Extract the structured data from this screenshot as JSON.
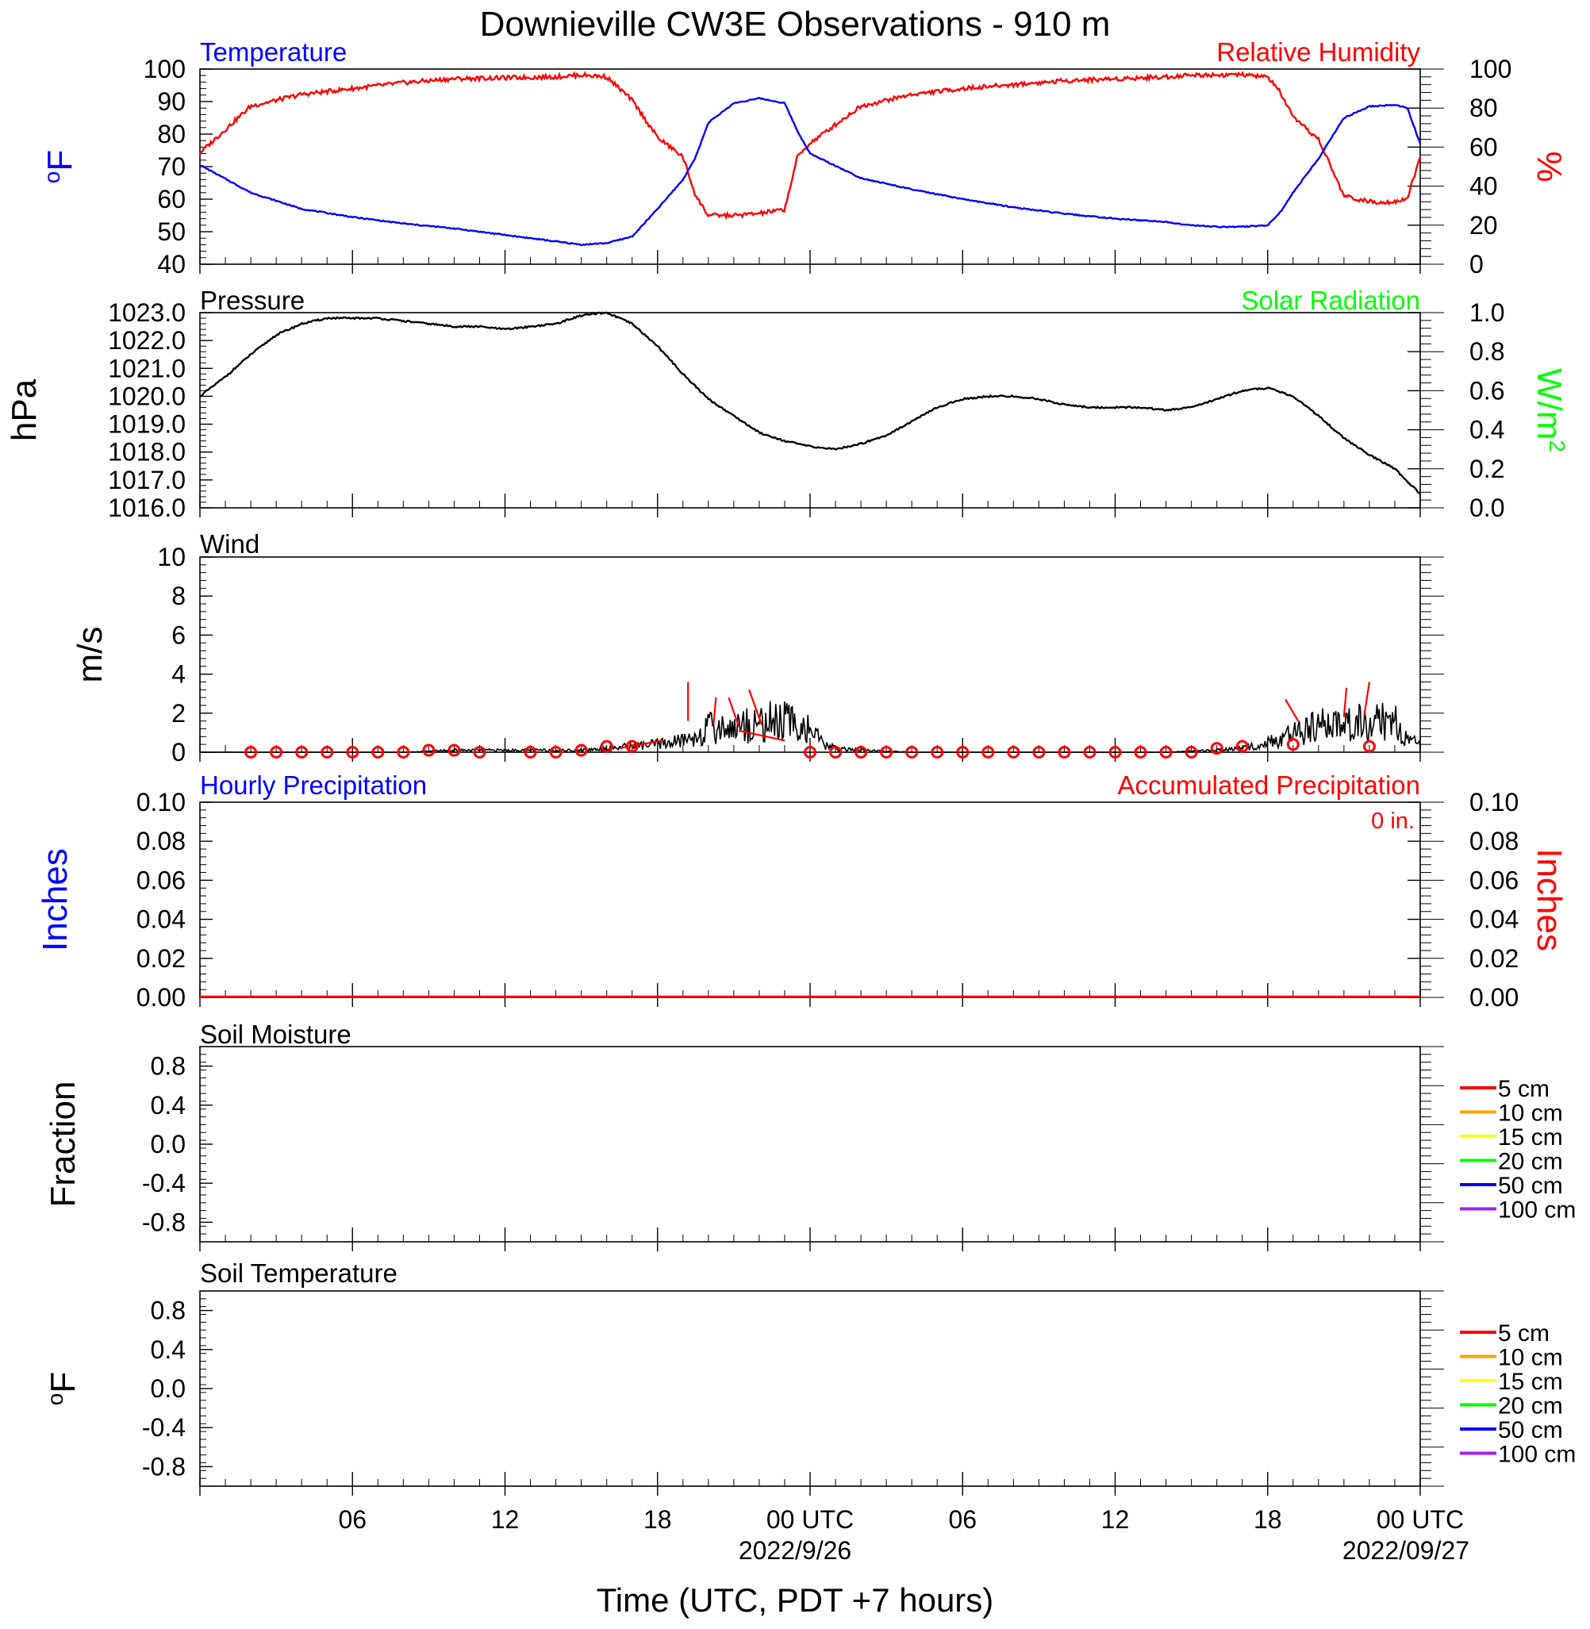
{
  "title": "Downieville CW3E Observations - 910 m",
  "xlabel": "Time (UTC, PDT +7 hours)",
  "x_ticks": [
    "06",
    "12",
    "18",
    "00 UTC",
    "06",
    "12",
    "18",
    "00 UTC"
  ],
  "x_dates": [
    "2022/9/26",
    "2022/09/27"
  ],
  "colors": {
    "temperature": "#0000ff",
    "humidity": "#ff0000",
    "pressure": "#000000",
    "solar": "#00ff00",
    "wind": "#000000",
    "wind_barb": "#ff0000",
    "hourly_precip": "#0000ff",
    "accum_precip": "#ff0000"
  },
  "soil_depths": [
    {
      "label": "5 cm",
      "color": "#ff0000"
    },
    {
      "label": "10 cm",
      "color": "#ffa500"
    },
    {
      "label": "15 cm",
      "color": "#ffff00"
    },
    {
      "label": "20 cm",
      "color": "#00ff00"
    },
    {
      "label": "50 cm",
      "color": "#0000ff"
    },
    {
      "label": "100 cm",
      "color": "#a020f0"
    }
  ],
  "chart_data": [
    {
      "type": "line",
      "name": "temperature-humidity",
      "left_title": "Temperature",
      "right_title": "Relative Humidity",
      "ylabel_left": "oF",
      "ylabel_right": "%",
      "ylim_left": [
        40,
        100
      ],
      "ylim_right": [
        0,
        100
      ],
      "yticks_left": [
        "100",
        "90",
        "80",
        "70",
        "60",
        "50",
        "40"
      ],
      "yticks_right": [
        "100",
        "80",
        "60",
        "40",
        "20",
        "0"
      ],
      "x_hours": [
        0,
        2,
        4,
        6,
        8,
        10,
        12,
        14,
        15,
        16,
        17,
        18,
        19,
        19.5,
        20,
        21,
        22,
        23,
        23.5,
        24,
        26,
        28,
        30,
        32,
        34,
        36,
        38,
        39,
        40,
        41,
        42,
        42.5,
        43,
        44,
        45,
        46,
        47,
        47.5,
        48
      ],
      "series": [
        {
          "name": "Temperature",
          "axis": "left",
          "values": [
            70.5,
            62,
            57,
            54.5,
            52.5,
            51,
            49,
            47,
            46,
            46.5,
            48.5,
            57,
            66,
            73,
            83.5,
            89.5,
            91,
            89.5,
            81,
            74,
            66.5,
            63,
            60,
            57.5,
            55.5,
            54,
            53,
            52,
            51.5,
            51.5,
            52,
            56,
            62,
            72.5,
            85,
            88.5,
            89,
            88,
            77
          ]
        },
        {
          "name": "Relative Humidity",
          "axis": "right",
          "values": [
            57,
            81,
            87,
            90,
            93,
            95,
            95.5,
            96,
            97,
            96,
            84,
            65,
            55,
            35,
            25,
            25,
            26,
            28,
            55,
            62,
            81,
            87,
            90,
            92,
            94,
            95,
            96,
            97,
            97,
            97,
            96,
            88,
            75,
            64,
            35,
            32,
            32,
            34,
            55
          ]
        }
      ]
    },
    {
      "type": "line",
      "name": "pressure-solar",
      "left_title": "Pressure",
      "right_title": "Solar Radiation",
      "ylabel_left": "hPa",
      "ylabel_right": "W/m2",
      "ylim_left": [
        1016.0,
        1023.0
      ],
      "ylim_right": [
        0.0,
        1.0
      ],
      "yticks_left": [
        "1023.0",
        "1022.0",
        "1021.0",
        "1020.0",
        "1019.0",
        "1018.0",
        "1017.0",
        "1016.0"
      ],
      "yticks_right": [
        "1.0",
        "0.8",
        "0.6",
        "0.4",
        "0.2",
        "0.0"
      ],
      "x_hours": [
        0,
        1,
        2,
        3,
        4,
        5,
        6,
        7,
        8,
        9,
        10,
        11,
        12,
        13,
        14,
        15,
        16,
        17,
        18,
        19,
        20,
        21,
        22,
        23,
        24,
        25,
        26,
        27,
        28,
        29,
        30,
        31,
        32,
        33,
        34,
        35,
        36,
        37,
        38,
        39,
        40,
        41,
        42,
        43,
        44,
        45,
        46,
        47,
        48
      ],
      "series": [
        {
          "name": "Pressure",
          "axis": "left",
          "values": [
            1020.0,
            1020.7,
            1021.5,
            1022.2,
            1022.6,
            1022.8,
            1022.8,
            1022.8,
            1022.7,
            1022.6,
            1022.5,
            1022.5,
            1022.4,
            1022.5,
            1022.6,
            1022.9,
            1023.0,
            1022.6,
            1021.8,
            1020.8,
            1019.9,
            1019.3,
            1018.7,
            1018.4,
            1018.2,
            1018.1,
            1018.3,
            1018.6,
            1019.1,
            1019.6,
            1019.9,
            1020.0,
            1020.0,
            1019.9,
            1019.7,
            1019.6,
            1019.6,
            1019.6,
            1019.5,
            1019.6,
            1019.9,
            1020.2,
            1020.3,
            1020.0,
            1019.3,
            1018.5,
            1017.9,
            1017.4,
            1016.5
          ]
        },
        {
          "name": "Solar Radiation",
          "axis": "right",
          "values": []
        }
      ]
    },
    {
      "type": "line",
      "name": "wind",
      "left_title": "Wind",
      "ylabel_left": "m/s",
      "ylim": [
        0,
        10
      ],
      "yticks": [
        "10",
        "8",
        "6",
        "4",
        "2",
        "0"
      ],
      "x_hours": [
        0,
        2,
        4,
        6,
        8,
        10,
        12,
        14,
        15,
        16,
        17,
        18,
        19,
        19.5,
        20,
        21,
        22,
        23,
        24,
        24.5,
        25,
        26,
        28,
        30,
        32,
        34,
        36,
        38,
        40,
        41,
        42,
        43,
        44,
        45,
        46,
        47,
        48
      ],
      "series": [
        {
          "name": "Wind",
          "values": [
            0,
            0,
            0,
            0,
            0,
            0.1,
            0.1,
            0.1,
            0.1,
            0.2,
            0.3,
            0.4,
            0.6,
            0.8,
            1.2,
            1.3,
            1.5,
            1.6,
            1.2,
            0.4,
            0.2,
            0.1,
            0,
            0,
            0,
            0,
            0,
            0,
            0.1,
            0.2,
            0.5,
            0.9,
            1.3,
            1.5,
            1.6,
            1.5,
            0.3
          ]
        }
      ],
      "barbs": [
        {
          "h": 2,
          "v": 0
        },
        {
          "h": 3,
          "v": 0
        },
        {
          "h": 4,
          "v": 0
        },
        {
          "h": 5,
          "v": 0
        },
        {
          "h": 6,
          "v": 0
        },
        {
          "h": 7,
          "v": 0
        },
        {
          "h": 8,
          "v": 0
        },
        {
          "h": 9,
          "v": 0.1
        },
        {
          "h": 10,
          "v": 0.1
        },
        {
          "h": 11,
          "v": 0
        },
        {
          "h": 13,
          "v": 0
        },
        {
          "h": 14,
          "v": 0
        },
        {
          "h": 15,
          "v": 0.1
        },
        {
          "h": 16,
          "v": 0.3
        },
        {
          "h": 17,
          "v": 0.3
        },
        {
          "h": 24,
          "v": 0
        },
        {
          "h": 25,
          "v": 0
        },
        {
          "h": 26,
          "v": 0
        },
        {
          "h": 27,
          "v": 0
        },
        {
          "h": 28,
          "v": 0
        },
        {
          "h": 29,
          "v": 0
        },
        {
          "h": 30,
          "v": 0
        },
        {
          "h": 31,
          "v": 0
        },
        {
          "h": 32,
          "v": 0
        },
        {
          "h": 33,
          "v": 0
        },
        {
          "h": 34,
          "v": 0
        },
        {
          "h": 35,
          "v": 0
        },
        {
          "h": 36,
          "v": 0
        },
        {
          "h": 37,
          "v": 0
        },
        {
          "h": 38,
          "v": 0
        },
        {
          "h": 39,
          "v": 0
        },
        {
          "h": 40,
          "v": 0.2
        },
        {
          "h": 41,
          "v": 0.3
        },
        {
          "h": 43,
          "v": 0.4
        },
        {
          "h": 46,
          "v": 0.3
        }
      ]
    },
    {
      "type": "bar",
      "name": "precipitation",
      "left_title": "Hourly Precipitation",
      "right_title": "Accumulated Precipitation",
      "accum_total": "0 in.",
      "ylabel_left": "Inches",
      "ylabel_right": "Inches",
      "ylim": [
        0.0,
        0.1
      ],
      "yticks": [
        "0.10",
        "0.08",
        "0.06",
        "0.04",
        "0.02",
        "0.00"
      ],
      "series": [
        {
          "name": "Hourly Precipitation",
          "values": []
        },
        {
          "name": "Accumulated Precipitation",
          "values": [
            0,
            0
          ]
        }
      ]
    },
    {
      "type": "line",
      "name": "soil-moisture",
      "left_title": "Soil Moisture",
      "ylabel_left": "Fraction",
      "ylim": [
        -1.0,
        1.0
      ],
      "yticks": [
        "0.8",
        "0.4",
        "0.0",
        "-0.4",
        "-0.8"
      ],
      "series": []
    },
    {
      "type": "line",
      "name": "soil-temperature",
      "left_title": "Soil Temperature",
      "ylabel_left": "oF",
      "ylim": [
        -1.0,
        1.0
      ],
      "yticks": [
        "0.8",
        "0.4",
        "0.0",
        "-0.4",
        "-0.8"
      ],
      "series": []
    }
  ]
}
